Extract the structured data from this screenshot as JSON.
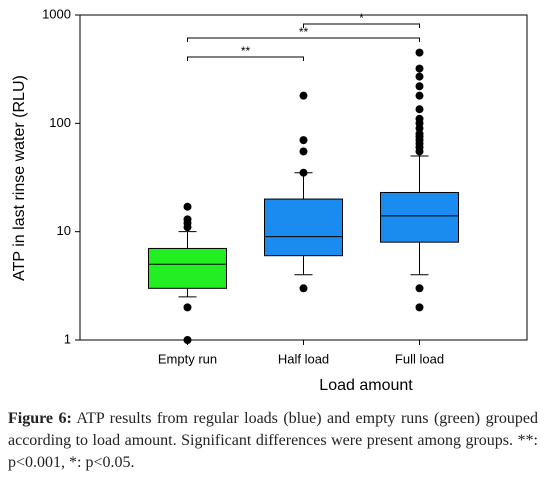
{
  "chart_data": {
    "type": "box",
    "log_scale": true,
    "y_label": "ATP in last rinse water (RLU)",
    "x_label": "Load amount",
    "categories": [
      "Empty run",
      "Half load",
      "Full load"
    ],
    "ylim": [
      1,
      1000
    ],
    "yticks": [
      1,
      10,
      100,
      1000
    ],
    "boxes": [
      {
        "color": "#22ee22",
        "whislo": 2.5,
        "q1": 3,
        "med": 5,
        "q3": 7,
        "whishi": 10,
        "fliers": [
          1,
          2,
          11,
          12,
          13,
          17
        ]
      },
      {
        "color": "#1a8cf0",
        "whislo": 4,
        "q1": 6,
        "med": 9,
        "q3": 20,
        "whishi": 35,
        "fliers": [
          3,
          35,
          55,
          70,
          180
        ]
      },
      {
        "color": "#1a8cf0",
        "whislo": 4,
        "q1": 8,
        "med": 14,
        "q3": 23,
        "whishi": 50,
        "fliers": [
          2,
          3,
          55,
          60,
          65,
          70,
          75,
          80,
          90,
          100,
          110,
          135,
          180,
          220,
          270,
          320,
          450
        ]
      }
    ],
    "annotations": [
      {
        "text": "**",
        "between": [
          0,
          1
        ]
      },
      {
        "text": "**",
        "between": [
          0,
          2
        ]
      },
      {
        "text": "*",
        "between": [
          1,
          2
        ]
      }
    ]
  },
  "caption": {
    "label": "Figure 6:",
    "text": " ATP results from regular loads (blue) and empty runs (green) grouped according to load amount. Significant differences were present among groups. **: p<0.001, *: p<0.05."
  }
}
